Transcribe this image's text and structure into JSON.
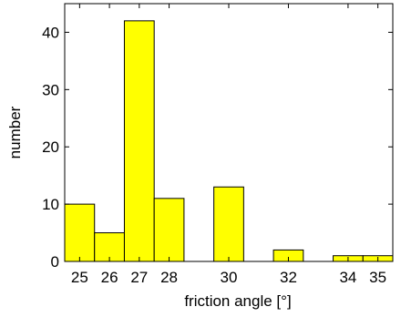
{
  "chart_data": {
    "type": "bar",
    "title": "",
    "xlabel": "friction angle [°]",
    "ylabel": "number",
    "x_ticks": [
      25,
      26,
      27,
      28,
      30,
      32,
      34,
      35
    ],
    "y_ticks": [
      0,
      10,
      20,
      30,
      40
    ],
    "xlim": [
      24.5,
      35.5
    ],
    "ylim": [
      0,
      45
    ],
    "grid": false,
    "bar_color": "#ffff00",
    "bar_edge_color": "#000000",
    "bins": [
      {
        "x0": 24.5,
        "x1": 25.5,
        "value": 10
      },
      {
        "x0": 25.5,
        "x1": 26.5,
        "value": 5
      },
      {
        "x0": 26.5,
        "x1": 27.5,
        "value": 42
      },
      {
        "x0": 27.5,
        "x1": 28.5,
        "value": 11
      },
      {
        "x0": 28.5,
        "x1": 29.5,
        "value": 0
      },
      {
        "x0": 29.5,
        "x1": 30.5,
        "value": 13
      },
      {
        "x0": 30.5,
        "x1": 31.5,
        "value": 0
      },
      {
        "x0": 31.5,
        "x1": 32.5,
        "value": 2
      },
      {
        "x0": 32.5,
        "x1": 33.5,
        "value": 0
      },
      {
        "x0": 33.5,
        "x1": 34.5,
        "value": 1
      },
      {
        "x0": 34.5,
        "x1": 35.5,
        "value": 1
      }
    ]
  }
}
